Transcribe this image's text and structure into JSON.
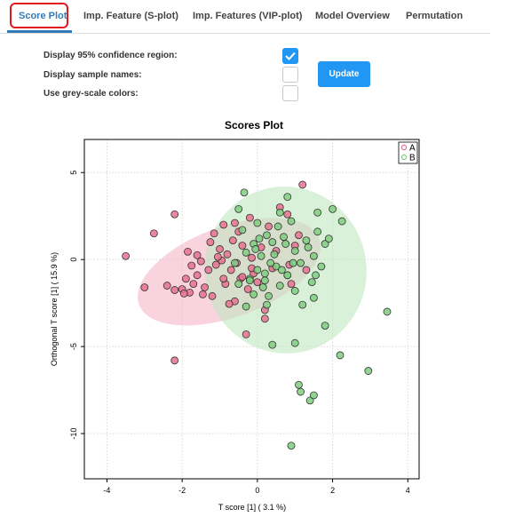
{
  "tabs": [
    {
      "label": "Score Plot",
      "active": true
    },
    {
      "label": "Imp. Feature (S-plot)",
      "active": false
    },
    {
      "label": "Imp. Features (VIP-plot)",
      "active": false
    },
    {
      "label": "Model Overview",
      "active": false
    },
    {
      "label": "Permutation",
      "active": false
    }
  ],
  "options": {
    "confidence_label": "Display 95% confidence region:",
    "confidence_checked": true,
    "names_label": "Display sample names:",
    "names_checked": false,
    "grey_label": "Use grey-scale colors:",
    "grey_checked": false,
    "update_label": "Update"
  },
  "colors": {
    "accent": "#2196f3",
    "tab_active": "#337ab7",
    "highlight_box": "#e0191c",
    "group_a": "#e8718f",
    "group_b": "#7fcc7f",
    "ellipse_a": "#f5b5c6",
    "ellipse_b": "#bfe6bf"
  },
  "chart_data": {
    "type": "scatter",
    "title": "Scores Plot",
    "xlabel": "T score [1]  ( 3.1 %)",
    "ylabel": "Orthogonal T score [1]  ( 15.9 %)",
    "xlim": [
      -4.6,
      4.3
    ],
    "ylim": [
      -12.6,
      6.9
    ],
    "xticks": [
      -4,
      -2,
      0,
      2,
      4
    ],
    "yticks": [
      5,
      0,
      -5,
      -10
    ],
    "grid": true,
    "legend_position": "top-right",
    "confidence_regions": [
      {
        "group": "A",
        "cx": -0.75,
        "cy": -0.7,
        "rx": 2.55,
        "ry": 2.6,
        "angle": -20
      },
      {
        "group": "B",
        "cx": 0.75,
        "cy": -0.6,
        "rx": 2.15,
        "ry": 4.8,
        "angle": -12
      }
    ],
    "series": [
      {
        "name": "A",
        "points": [
          [
            -3.5,
            0.2
          ],
          [
            -3.0,
            -1.6
          ],
          [
            -2.75,
            1.5
          ],
          [
            -2.2,
            -5.8
          ],
          [
            -2.2,
            2.6
          ],
          [
            -1.9,
            -1.1
          ],
          [
            -1.8,
            -1.9
          ],
          [
            -1.6,
            -0.9
          ],
          [
            -1.4,
            -1.6
          ],
          [
            -1.2,
            -2.1
          ],
          [
            -1.1,
            -0.3
          ],
          [
            -1.0,
            0.6
          ],
          [
            -0.9,
            2.0
          ],
          [
            -0.85,
            -1.4
          ],
          [
            -0.8,
            0.3
          ],
          [
            -0.7,
            -0.6
          ],
          [
            -0.65,
            1.1
          ],
          [
            -0.6,
            -2.4
          ],
          [
            -0.55,
            -0.2
          ],
          [
            -0.5,
            1.6
          ],
          [
            -0.45,
            -1.1
          ],
          [
            -0.4,
            0.8
          ],
          [
            -0.3,
            -4.3
          ],
          [
            -0.25,
            -1.7
          ],
          [
            -0.2,
            2.4
          ],
          [
            -0.15,
            0.1
          ],
          [
            -0.1,
            -0.8
          ],
          [
            0.0,
            -1.3
          ],
          [
            0.1,
            0.7
          ],
          [
            0.2,
            -2.9
          ],
          [
            0.2,
            -3.4
          ],
          [
            0.3,
            1.9
          ],
          [
            0.4,
            -0.5
          ],
          [
            0.5,
            0.5
          ],
          [
            0.6,
            3.0
          ],
          [
            0.8,
            2.6
          ],
          [
            0.85,
            -0.3
          ],
          [
            0.9,
            -1.4
          ],
          [
            1.0,
            0.8
          ],
          [
            1.1,
            1.4
          ],
          [
            1.2,
            4.3
          ],
          [
            1.3,
            -0.6
          ],
          [
            -1.5,
            -0.1
          ],
          [
            -1.25,
            1.0
          ],
          [
            -1.7,
            -1.4
          ],
          [
            -2.0,
            -1.7
          ],
          [
            -1.3,
            -0.6
          ],
          [
            -0.95,
            -0.05
          ],
          [
            -2.2,
            -1.75
          ],
          [
            -1.95,
            -1.95
          ],
          [
            -1.75,
            -0.35
          ],
          [
            -1.85,
            0.45
          ],
          [
            -1.45,
            -2.0
          ],
          [
            -1.15,
            1.5
          ],
          [
            -0.75,
            -2.55
          ],
          [
            -0.6,
            2.1
          ],
          [
            -0.4,
            -1.0
          ],
          [
            -0.15,
            -0.5
          ],
          [
            -2.4,
            -1.5
          ],
          [
            -1.6,
            0.25
          ],
          [
            -1.05,
            0.15
          ],
          [
            -0.9,
            -1.1
          ]
        ]
      },
      {
        "name": "B",
        "points": [
          [
            0.9,
            -10.7
          ],
          [
            1.1,
            -7.2
          ],
          [
            1.15,
            -7.6
          ],
          [
            1.4,
            -8.1
          ],
          [
            1.5,
            -7.8
          ],
          [
            2.2,
            -5.5
          ],
          [
            2.95,
            -6.4
          ],
          [
            3.45,
            -3.0
          ],
          [
            1.8,
            -3.8
          ],
          [
            1.5,
            -2.2
          ],
          [
            1.2,
            -2.6
          ],
          [
            1.0,
            -1.8
          ],
          [
            0.8,
            -0.9
          ],
          [
            0.6,
            -1.5
          ],
          [
            0.5,
            -0.4
          ],
          [
            0.3,
            -2.1
          ],
          [
            0.2,
            -1.2
          ],
          [
            0.1,
            0.2
          ],
          [
            0.0,
            -0.6
          ],
          [
            -0.1,
            0.9
          ],
          [
            -0.2,
            -1.1
          ],
          [
            -0.3,
            0.4
          ],
          [
            -0.4,
            1.7
          ],
          [
            -0.5,
            2.9
          ],
          [
            -0.6,
            -0.2
          ],
          [
            0.7,
            1.3
          ],
          [
            0.9,
            2.2
          ],
          [
            1.0,
            0.5
          ],
          [
            1.3,
            1.1
          ],
          [
            1.5,
            0.2
          ],
          [
            1.6,
            1.6
          ],
          [
            1.7,
            -0.4
          ],
          [
            1.8,
            0.9
          ],
          [
            2.0,
            2.9
          ],
          [
            2.25,
            2.2
          ],
          [
            1.9,
            1.2
          ],
          [
            0.8,
            -0.9
          ],
          [
            0.4,
            1.0
          ],
          [
            0.6,
            2.7
          ],
          [
            0.8,
            3.6
          ],
          [
            -0.35,
            3.85
          ],
          [
            0.4,
            -4.9
          ],
          [
            1.0,
            -4.8
          ],
          [
            -0.1,
            -2.0
          ],
          [
            0.2,
            -0.8
          ],
          [
            -0.5,
            -1.4
          ],
          [
            -0.3,
            -2.7
          ],
          [
            0.0,
            2.1
          ],
          [
            0.25,
            1.4
          ],
          [
            0.45,
            0.3
          ],
          [
            0.65,
            -0.6
          ],
          [
            0.35,
            -0.2
          ],
          [
            -0.05,
            0.6
          ],
          [
            0.15,
            -1.6
          ],
          [
            1.15,
            -0.2
          ],
          [
            1.35,
            0.7
          ],
          [
            0.55,
            1.9
          ],
          [
            0.75,
            0.9
          ],
          [
            1.55,
            -0.9
          ],
          [
            -0.2,
            -1.2
          ],
          [
            0.05,
            1.2
          ],
          [
            0.95,
            -0.2
          ],
          [
            1.45,
            -1.3
          ],
          [
            0.25,
            -2.6
          ],
          [
            1.6,
            2.7
          ]
        ]
      }
    ]
  }
}
